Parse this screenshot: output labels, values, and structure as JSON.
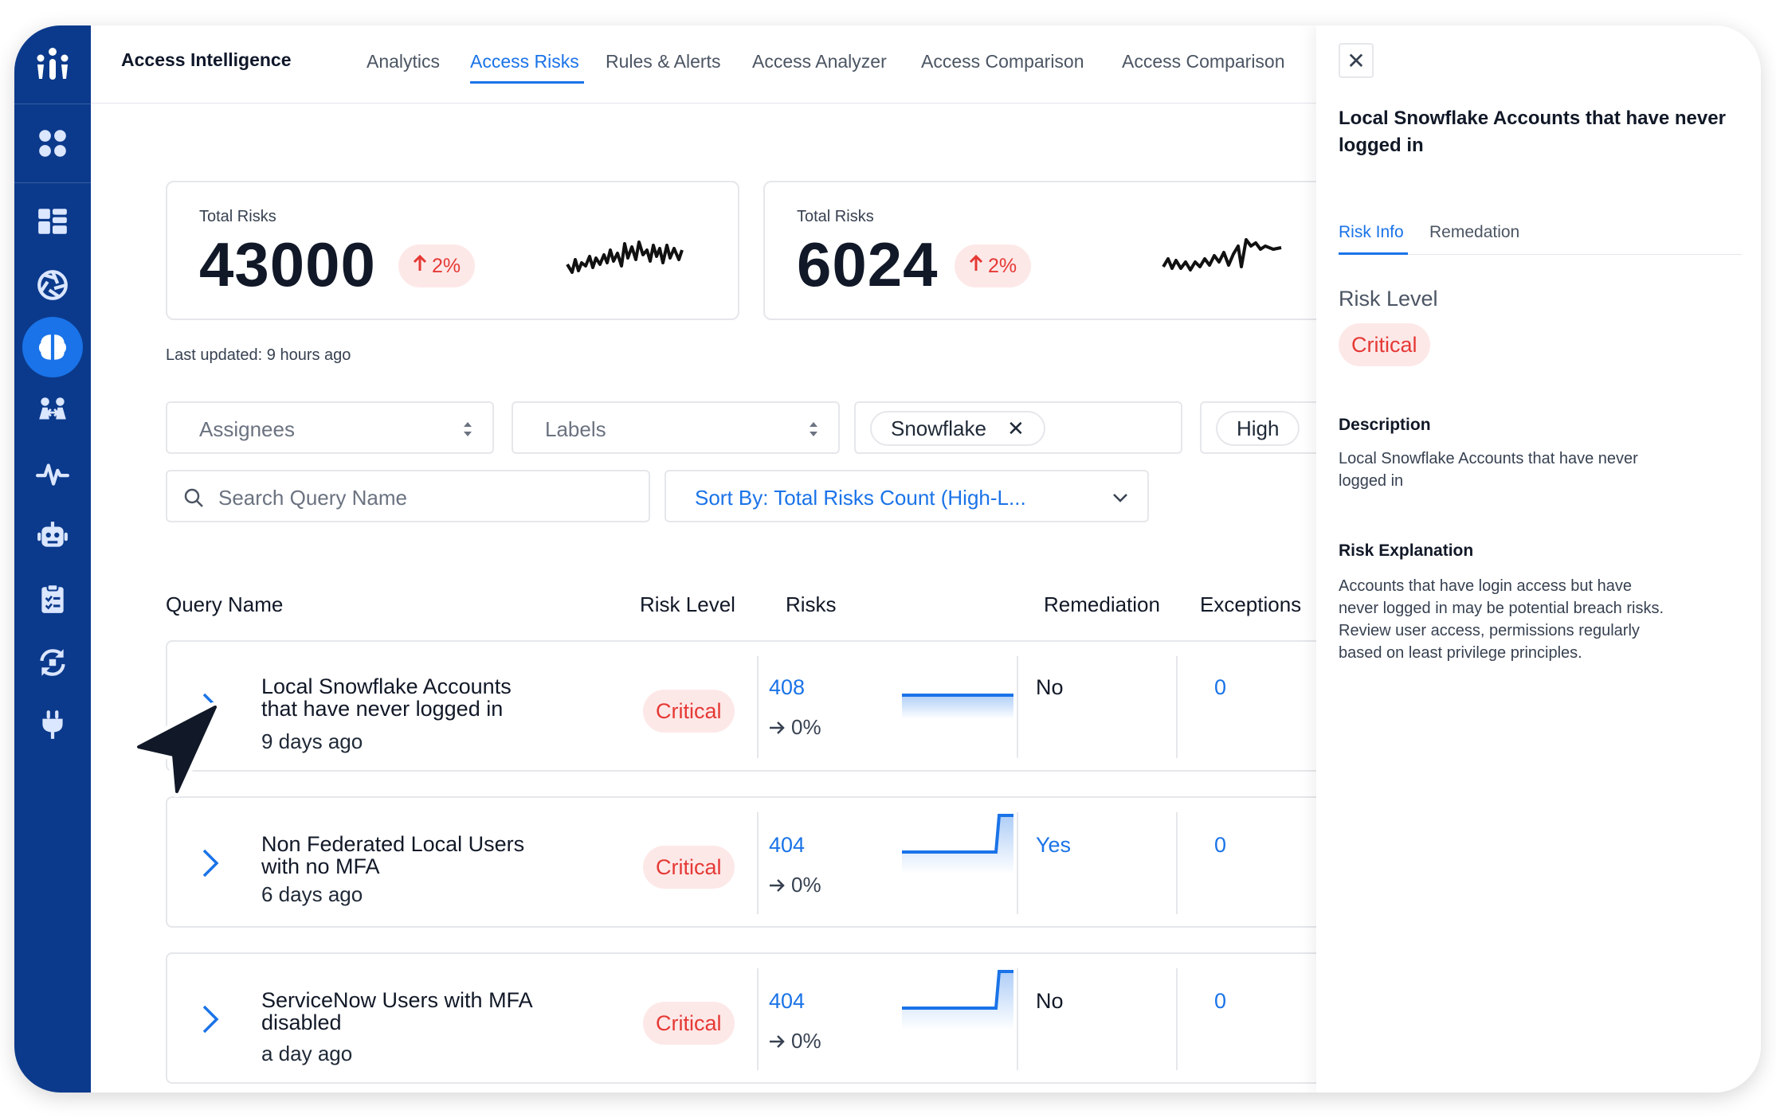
{
  "app": {
    "title": "Access Intelligence"
  },
  "nav": {
    "tabs": [
      {
        "label": "Analytics"
      },
      {
        "label": "Access Risks",
        "active": true
      },
      {
        "label": "Rules & Alerts"
      },
      {
        "label": "Access Analyzer"
      },
      {
        "label": "Access Comparison"
      },
      {
        "label": "Access Comparison"
      }
    ]
  },
  "sidebar": {
    "items": [
      {
        "icon": "apps-icon"
      },
      {
        "icon": "dashboard-icon"
      },
      {
        "icon": "aperture-icon"
      },
      {
        "icon": "brain-icon",
        "active": true
      },
      {
        "icon": "people-icon"
      },
      {
        "icon": "activity-icon"
      },
      {
        "icon": "robot-icon"
      },
      {
        "icon": "clipboard-icon"
      },
      {
        "icon": "sync-icon"
      },
      {
        "icon": "plug-icon"
      }
    ]
  },
  "cards": [
    {
      "label": "Total Risks",
      "value": "43000",
      "change": "2%"
    },
    {
      "label": "Total Risks",
      "value": "6024",
      "change": "2%"
    }
  ],
  "last_updated": "Last updated: 9 hours ago",
  "filters": {
    "assignees_placeholder": "Assignees",
    "labels_placeholder": "Labels",
    "chip_snowflake": "Snowflake",
    "chip_high": "High",
    "search_placeholder": "Search Query Name",
    "sort_label": "Sort By: Total Risks Count (High-L..."
  },
  "table": {
    "headers": {
      "query_name": "Query Name",
      "risk_level": "Risk Level",
      "risks": "Risks",
      "remediation": "Remediation",
      "exceptions": "Exceptions"
    },
    "rows": [
      {
        "title": "Local Snowflake Accounts that have never logged in",
        "age": "9 days ago",
        "risk_level": "Critical",
        "risks": "408",
        "change": "0%",
        "remediation": "No",
        "exceptions": "0"
      },
      {
        "title": "Non Federated Local Users with no MFA",
        "age": "6 days ago",
        "risk_level": "Critical",
        "risks": "404",
        "change": "0%",
        "remediation": "Yes",
        "exceptions": "0"
      },
      {
        "title": "ServiceNow Users with MFA disabled",
        "age": "a day ago",
        "risk_level": "Critical",
        "risks": "404",
        "change": "0%",
        "remediation": "No",
        "exceptions": "0"
      }
    ]
  },
  "panel": {
    "close": "✕",
    "title": "Local Snowflake Accounts that have never logged in",
    "tabs": {
      "risk_info": "Risk Info",
      "remediation": "Remedation"
    },
    "risk_level_heading": "Risk Level",
    "risk_level_value": "Critical",
    "description_heading": "Description",
    "description": "Local Snowflake Accounts that have never logged in",
    "explanation_heading": "Risk Explanation",
    "explanation": "Accounts that have login access but have never logged in may be potential breach risks. Review user access, permissions regularly based on least privilege principles."
  },
  "colors": {
    "sidebar": "#0b3a8c",
    "accent": "#1a73e8",
    "critical_text": "#e53935",
    "critical_bg": "#fde8e8"
  }
}
